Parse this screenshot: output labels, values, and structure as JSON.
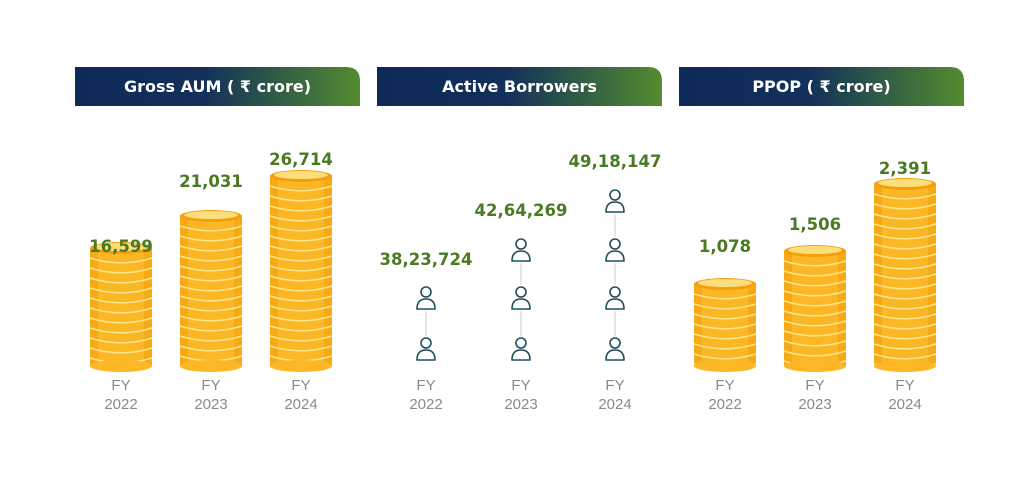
{
  "colors": {
    "header_start": "#0e2a58",
    "header_end": "#558b2f",
    "value_text": "#4a7a23",
    "year_text": "#8a8a8a",
    "coin_fill": "#fbb725",
    "coin_edge": "#f59e0b",
    "coin_highlight": "#fde68a",
    "person_icon": "#1f4e5f"
  },
  "chart_data": [
    {
      "type": "bar",
      "title": "Gross AUM ( ₹ crore)",
      "mark": "coin-stack",
      "categories": [
        "FY 2022",
        "FY 2023",
        "FY 2024"
      ],
      "category_lines": [
        [
          "FY",
          "2022"
        ],
        [
          "FY",
          "2023"
        ],
        [
          "FY",
          "2024"
        ]
      ],
      "values": [
        16599,
        21031,
        26714
      ],
      "value_labels": [
        "16,599",
        "21,031",
        "26,714"
      ]
    },
    {
      "type": "bar",
      "title": "Active Borrowers",
      "mark": "person-icon-stack",
      "categories": [
        "FY 2022",
        "FY 2023",
        "FY 2024"
      ],
      "category_lines": [
        [
          "FY",
          "2022"
        ],
        [
          "FY",
          "2023"
        ],
        [
          "FY",
          "2024"
        ]
      ],
      "values": [
        3823724,
        4264269,
        4918147
      ],
      "value_labels": [
        "38,23,724",
        "42,64,269",
        "49,18,147"
      ]
    },
    {
      "type": "bar",
      "title": "PPOP ( ₹ crore)",
      "mark": "coin-stack",
      "categories": [
        "FY 2022",
        "FY 2023",
        "FY 2024"
      ],
      "category_lines": [
        [
          "FY",
          "2022"
        ],
        [
          "FY",
          "2023"
        ],
        [
          "FY",
          "2024"
        ]
      ],
      "values": [
        1078,
        1506,
        2391
      ],
      "value_labels": [
        "1,078",
        "1,506",
        "2,391"
      ]
    }
  ]
}
